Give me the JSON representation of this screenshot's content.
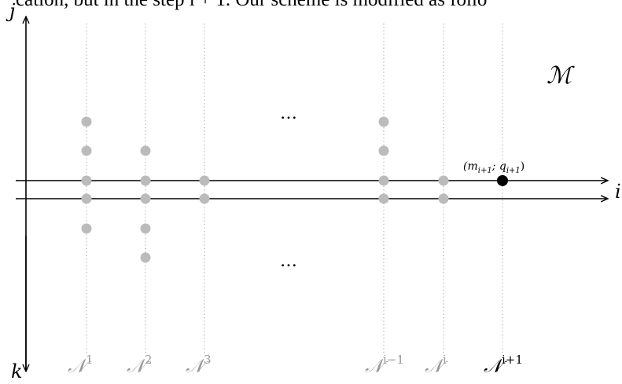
{
  "header_text": "cation, but in the step i + 1. Our scheme is modified as follo",
  "axes": {
    "vertical_up": "j",
    "vertical_down": "k",
    "horizontal": "i"
  },
  "region_label": "ℳ",
  "ellipsis_top": "…",
  "ellipsis_bottom": "…",
  "point_label": "(m",
  "point_label_sub1": "i+1",
  "point_label_sep": "; q",
  "point_label_sub2": "i+1",
  "point_label_close": ")",
  "columns": [
    {
      "name": "𝒩",
      "sup": "1",
      "active": false
    },
    {
      "name": "𝒩",
      "sup": "2",
      "active": false
    },
    {
      "name": "𝒩",
      "sup": "3",
      "active": false
    },
    {
      "name": "𝒩",
      "sup": "i−1",
      "active": false
    },
    {
      "name": "𝒩",
      "sup": "i",
      "active": false
    },
    {
      "name": "𝒩",
      "sup": "i+1",
      "active": true
    }
  ],
  "colors": {
    "dot": "#bbbbbb",
    "active_dot": "#000000",
    "axis": "#000000",
    "column_label": "#999999",
    "gridline": "#9a9a9a"
  }
}
